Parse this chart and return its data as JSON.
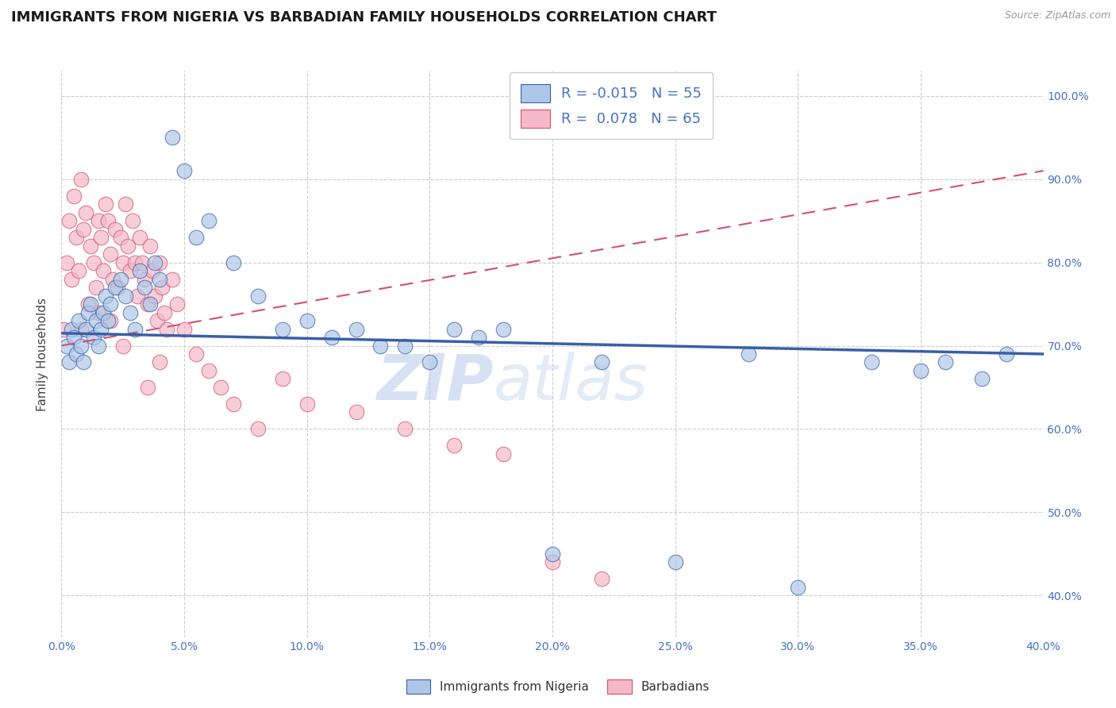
{
  "title": "IMMIGRANTS FROM NIGERIA VS BARBADIAN FAMILY HOUSEHOLDS CORRELATION CHART",
  "source": "Source: ZipAtlas.com",
  "ylabel_label": "Family Households",
  "legend_label_1": "Immigrants from Nigeria",
  "legend_label_2": "Barbadians",
  "blue_color": "#aec6e8",
  "pink_color": "#f5b8c8",
  "blue_line_color": "#3a5fa8",
  "pink_line_color": "#d45070",
  "watermark_zip": "ZIP",
  "watermark_atlas": "atlas",
  "xlim": [
    0.0,
    40.0
  ],
  "ylim": [
    35.0,
    103.0
  ],
  "blue_scatter_x": [
    0.2,
    0.3,
    0.4,
    0.5,
    0.6,
    0.7,
    0.8,
    0.9,
    1.0,
    1.1,
    1.2,
    1.3,
    1.4,
    1.5,
    1.6,
    1.7,
    1.8,
    1.9,
    2.0,
    2.2,
    2.4,
    2.6,
    2.8,
    3.0,
    3.2,
    3.4,
    3.6,
    3.8,
    4.0,
    4.5,
    5.0,
    5.5,
    6.0,
    7.0,
    8.0,
    9.0,
    10.0,
    11.0,
    12.0,
    13.0,
    14.0,
    15.0,
    16.0,
    17.0,
    18.0,
    20.0,
    22.0,
    25.0,
    28.0,
    30.0,
    33.0,
    35.0,
    36.0,
    37.5,
    38.5
  ],
  "blue_scatter_y": [
    70,
    68,
    72,
    71,
    69,
    73,
    70,
    68,
    72,
    74,
    75,
    71,
    73,
    70,
    72,
    74,
    76,
    73,
    75,
    77,
    78,
    76,
    74,
    72,
    79,
    77,
    75,
    80,
    78,
    95,
    91,
    83,
    85,
    80,
    76,
    72,
    73,
    71,
    72,
    70,
    70,
    68,
    72,
    71,
    72,
    45,
    68,
    44,
    69,
    41,
    68,
    67,
    68,
    66,
    69
  ],
  "pink_scatter_x": [
    0.1,
    0.2,
    0.3,
    0.4,
    0.5,
    0.6,
    0.7,
    0.8,
    0.9,
    1.0,
    1.1,
    1.2,
    1.3,
    1.4,
    1.5,
    1.6,
    1.7,
    1.8,
    1.9,
    2.0,
    2.1,
    2.2,
    2.3,
    2.4,
    2.5,
    2.6,
    2.7,
    2.8,
    2.9,
    3.0,
    3.1,
    3.2,
    3.3,
    3.4,
    3.5,
    3.6,
    3.7,
    3.8,
    3.9,
    4.0,
    4.1,
    4.2,
    4.3,
    4.5,
    4.7,
    5.0,
    5.5,
    6.0,
    6.5,
    7.0,
    8.0,
    9.0,
    10.0,
    12.0,
    14.0,
    16.0,
    18.0,
    20.0,
    2.5,
    3.5,
    4.0,
    0.8,
    1.5,
    2.0,
    22.0
  ],
  "pink_scatter_y": [
    72,
    80,
    85,
    78,
    88,
    83,
    79,
    90,
    84,
    86,
    75,
    82,
    80,
    77,
    85,
    83,
    79,
    87,
    85,
    81,
    78,
    84,
    77,
    83,
    80,
    87,
    82,
    79,
    85,
    80,
    76,
    83,
    80,
    78,
    75,
    82,
    79,
    76,
    73,
    80,
    77,
    74,
    72,
    78,
    75,
    72,
    69,
    67,
    65,
    63,
    60,
    66,
    63,
    62,
    60,
    58,
    57,
    44,
    70,
    65,
    68,
    72,
    74,
    73,
    42
  ],
  "blue_trend_x": [
    0.0,
    40.0
  ],
  "blue_trend_y": [
    71.5,
    69.0
  ],
  "pink_trend_x": [
    0.0,
    40.0
  ],
  "pink_trend_y": [
    70.0,
    91.0
  ]
}
